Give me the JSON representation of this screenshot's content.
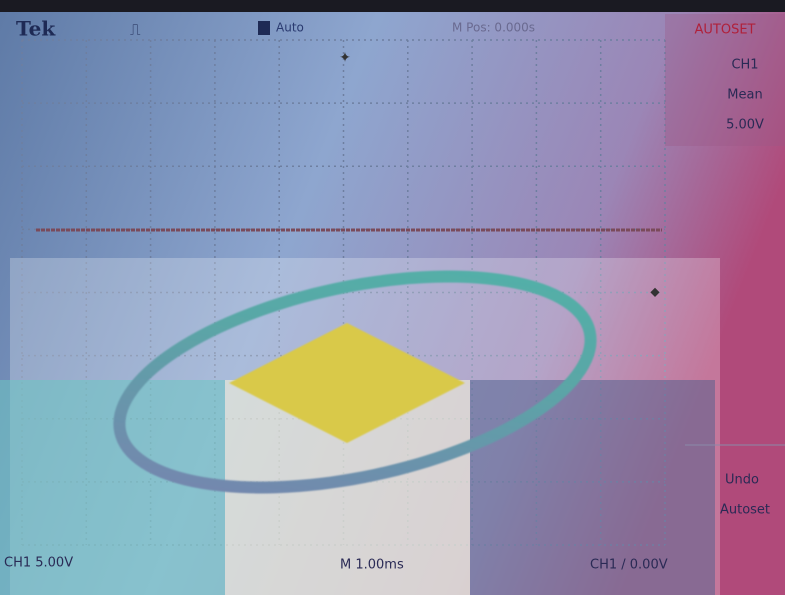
{
  "header": {
    "brand": "Tek",
    "trigger_mode": "Auto",
    "position": "M Pos: 0.000s"
  },
  "side_menu": {
    "title": "AUTOSET",
    "items": [
      {
        "lines": [
          "CH1",
          "Mean",
          "5.00V"
        ]
      },
      {
        "lines": [
          "Undo",
          "Autoset"
        ]
      }
    ]
  },
  "footer": {
    "channel_scale": "CH1 5.00V",
    "time_scale": "M 1.00ms",
    "trigger": "CH1 / 0.00V"
  }
}
